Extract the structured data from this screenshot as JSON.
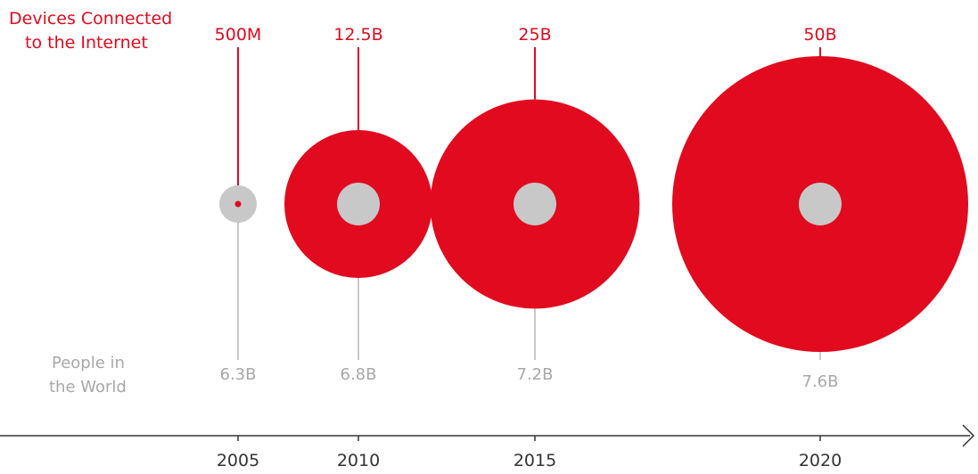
{
  "chart_data": {
    "type": "bubble",
    "title_devices": [
      "Devices Connected",
      "to the Internet"
    ],
    "title_people": [
      "People in",
      "the World"
    ],
    "x": [
      2005,
      2010,
      2015,
      2020
    ],
    "x_tick_labels": [
      "2005",
      "2010",
      "2015",
      "2020"
    ],
    "series": [
      {
        "name": "Devices Connected to the Internet",
        "values": [
          0.5,
          12.5,
          25,
          50
        ],
        "labels": [
          "500M",
          "12.5B",
          "25B",
          "50B"
        ],
        "color": "#e10a1e"
      },
      {
        "name": "People in the World",
        "values": [
          6.3,
          6.8,
          7.2,
          7.6
        ],
        "labels": [
          "6.3B",
          "6.8B",
          "7.2B",
          "7.6B"
        ],
        "color": "#c8c8c8"
      }
    ],
    "axis_color": "#333333"
  }
}
